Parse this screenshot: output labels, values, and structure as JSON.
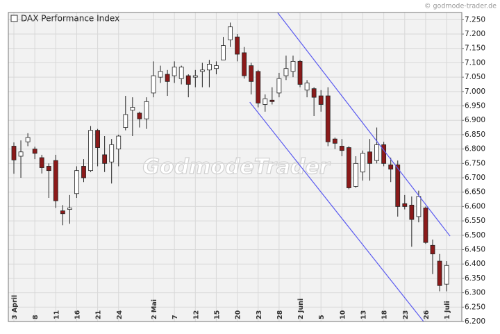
{
  "chart_data": {
    "type": "candlestick",
    "legend": "DAX Performance Index",
    "watermark": "GodmodeTrader",
    "copyright": "© godmode-trader.de",
    "categories": [
      "3 April",
      null,
      null,
      "8",
      null,
      null,
      "11",
      null,
      null,
      "16",
      null,
      null,
      "21",
      null,
      null,
      "24",
      null,
      null,
      null,
      null,
      "2 Mai",
      null,
      null,
      "7",
      null,
      null,
      "12",
      null,
      null,
      "15",
      null,
      null,
      "20",
      null,
      null,
      "23",
      null,
      null,
      "28",
      null,
      null,
      "2 Juni",
      null,
      null,
      "5",
      null,
      null,
      "10",
      null,
      null,
      "13",
      null,
      null,
      "18",
      null,
      null,
      "23",
      null,
      null,
      "26",
      null,
      null,
      "1 Juli"
    ],
    "open": [
      6810,
      6775,
      6825,
      6800,
      6770,
      6740,
      6760,
      6585,
      6590,
      6645,
      6740,
      6725,
      6865,
      6780,
      6755,
      6800,
      6875,
      6935,
      6925,
      6905,
      6995,
      7050,
      7060,
      7055,
      7045,
      7055,
      7050,
      7070,
      7075,
      7080,
      7110,
      7180,
      7190,
      7135,
      7090,
      7070,
      6955,
      6970,
      6995,
      7055,
      7070,
      7105,
      7005,
      7010,
      6985,
      6985,
      6835,
      6810,
      6805,
      6670,
      6720,
      6790,
      6760,
      6815,
      6745,
      6745,
      6610,
      6605,
      6565,
      6595,
      6465,
      6410,
      6330
    ],
    "high": [
      6823,
      6830,
      6855,
      6808,
      6780,
      6750,
      6780,
      6605,
      6640,
      6740,
      6765,
      6880,
      6870,
      6845,
      6835,
      6850,
      6985,
      6980,
      6930,
      6980,
      7105,
      7090,
      7075,
      7105,
      7090,
      7060,
      7075,
      7100,
      7110,
      7105,
      7190,
      7240,
      7200,
      7155,
      7100,
      7075,
      6990,
      7015,
      7065,
      7125,
      7125,
      7110,
      7040,
      7015,
      7005,
      7015,
      6840,
      6835,
      6810,
      6775,
      6795,
      6835,
      6875,
      6825,
      6770,
      6760,
      6640,
      6635,
      6655,
      6600,
      6485,
      6435,
      6410
    ],
    "low": [
      6714,
      6700,
      6810,
      6765,
      6715,
      6630,
      6595,
      6535,
      6540,
      6630,
      6685,
      6720,
      6740,
      6720,
      6680,
      6740,
      6865,
      6845,
      6875,
      6870,
      6980,
      7030,
      6985,
      7030,
      7025,
      6980,
      7015,
      7015,
      7015,
      7060,
      7110,
      7155,
      7105,
      7045,
      6990,
      6945,
      6930,
      6955,
      6980,
      7040,
      7050,
      7015,
      6980,
      6915,
      6930,
      6810,
      6800,
      6775,
      6660,
      6665,
      6690,
      6690,
      6750,
      6740,
      6685,
      6565,
      6590,
      6460,
      6545,
      6470,
      6365,
      6305,
      6305
    ],
    "close": [
      6762,
      6790,
      6840,
      6785,
      6735,
      6725,
      6620,
      6575,
      6595,
      6725,
      6700,
      6865,
      6805,
      6750,
      6815,
      6845,
      6920,
      6945,
      6905,
      6965,
      7055,
      7070,
      7035,
      7085,
      7085,
      7025,
      7055,
      7075,
      7095,
      7090,
      7160,
      7225,
      7130,
      7055,
      7035,
      6960,
      6975,
      6965,
      7045,
      7080,
      7105,
      7025,
      7030,
      6980,
      6955,
      6825,
      6820,
      6795,
      6665,
      6750,
      6785,
      6750,
      6815,
      6750,
      6730,
      6600,
      6600,
      6555,
      6635,
      6475,
      6435,
      6325,
      6395
    ],
    "up_color": "#ffffff",
    "down_color": "#8b1a1a",
    "trendlines": [
      {
        "x": [
          37.8,
          62.5
        ],
        "y": [
          7274,
          6497
        ]
      },
      {
        "x": [
          33.8,
          58.7
        ],
        "y": [
          6963,
          6200
        ]
      }
    ],
    "trendline_color": "#5a5af0",
    "ylim": [
      6200,
      7275
    ],
    "yticks": [
      {
        "value": 6200,
        "label": "6.200"
      },
      {
        "value": 6250,
        "label": "6.250"
      },
      {
        "value": 6300,
        "label": "6.300"
      },
      {
        "value": 6350,
        "label": "6.350"
      },
      {
        "value": 6400,
        "label": "6.400"
      },
      {
        "value": 6450,
        "label": "6.450"
      },
      {
        "value": 6500,
        "label": "6.500"
      },
      {
        "value": 6550,
        "label": "6.550"
      },
      {
        "value": 6600,
        "label": "6.600"
      },
      {
        "value": 6650,
        "label": "6.650"
      },
      {
        "value": 6700,
        "label": "6.700"
      },
      {
        "value": 6750,
        "label": "6.750"
      },
      {
        "value": 6800,
        "label": "6.800"
      },
      {
        "value": 6850,
        "label": "6.850"
      },
      {
        "value": 6900,
        "label": "6.900"
      },
      {
        "value": 6950,
        "label": "6.950"
      },
      {
        "value": 7000,
        "label": "7.000"
      },
      {
        "value": 7050,
        "label": "7.050"
      },
      {
        "value": 7100,
        "label": "7.100"
      },
      {
        "value": 7150,
        "label": "7.150"
      },
      {
        "value": 7200,
        "label": "7.200"
      },
      {
        "value": 7250,
        "label": "7.250"
      }
    ],
    "grid": true
  }
}
